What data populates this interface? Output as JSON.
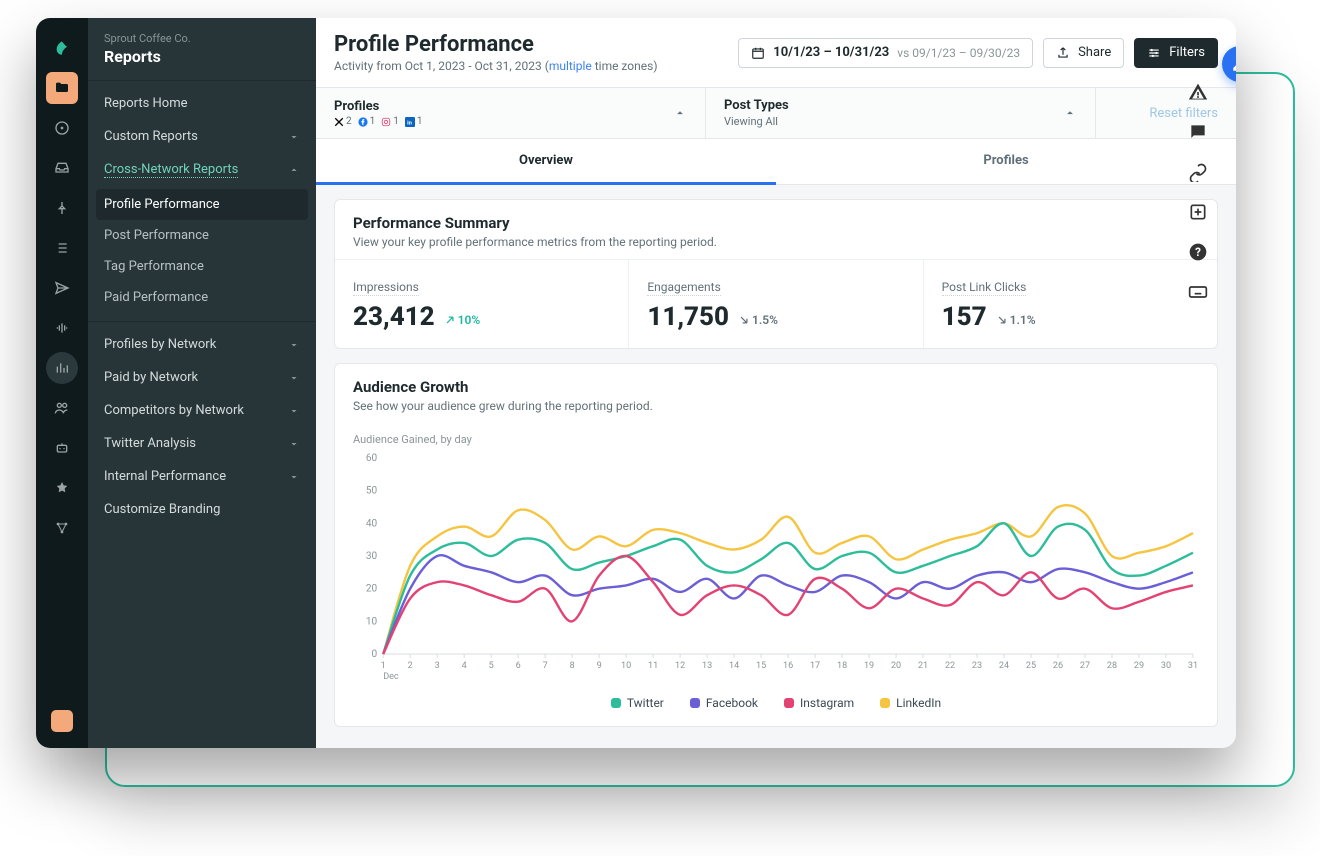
{
  "org": "Sprout Coffee Co.",
  "section": "Reports",
  "sidebar": {
    "home": "Reports Home",
    "custom": "Custom Reports",
    "cross": "Cross-Network Reports",
    "subs": [
      "Profile Performance",
      "Post Performance",
      "Tag Performance",
      "Paid Performance"
    ],
    "groups": [
      "Profiles by Network",
      "Paid by Network",
      "Competitors by Network",
      "Twitter Analysis",
      "Internal Performance"
    ],
    "custom_branding": "Customize Branding"
  },
  "header": {
    "title": "Profile Performance",
    "activity_prefix": "Activity from Oct 1, 2023 - Oct 31, 2023 (",
    "activity_multi": "multiple",
    "activity_suffix": " time zones)",
    "date_main": "10/1/23 – 10/31/23",
    "date_vs": "vs 09/1/23 – 09/30/23",
    "share": "Share",
    "filters": "Filters"
  },
  "strip": {
    "profiles_t": "Profiles",
    "profiles_counts": {
      "x": "2",
      "fb": "1",
      "ig": "1",
      "li": "1"
    },
    "post_types_t": "Post Types",
    "post_types_s": "Viewing All",
    "reset": "Reset filters"
  },
  "tabs": {
    "overview": "Overview",
    "profiles": "Profiles"
  },
  "summary": {
    "title": "Performance Summary",
    "sub": "View your key profile performance metrics from the reporting period.",
    "metrics": [
      {
        "label": "Impressions",
        "value": "23,412",
        "dir": "up",
        "delta": "10%"
      },
      {
        "label": "Engagements",
        "value": "11,750",
        "dir": "down",
        "delta": "1.5%"
      },
      {
        "label": "Post Link Clicks",
        "value": "157",
        "dir": "down",
        "delta": "1.1%"
      }
    ]
  },
  "growth": {
    "title": "Audience Growth",
    "sub": "See how your audience grew during the reporting period.",
    "chart_label": "Audience Gained, by day",
    "month": "Dec",
    "y_ticks": [
      0,
      10,
      20,
      30,
      40,
      50,
      60
    ],
    "x_ticks": [
      1,
      2,
      3,
      4,
      5,
      6,
      7,
      8,
      9,
      10,
      11,
      12,
      13,
      14,
      15,
      16,
      17,
      18,
      19,
      20,
      21,
      22,
      23,
      24,
      25,
      26,
      27,
      28,
      29,
      30,
      31
    ],
    "colors": {
      "twitter": "#2dbd9b",
      "facebook": "#6b5fd6",
      "instagram": "#e24373",
      "linkedin": "#f5c542",
      "grid": "#d8dee1",
      "axis_text": "#8a9598"
    },
    "legend": {
      "twitter": "Twitter",
      "facebook": "Facebook",
      "instagram": "Instagram",
      "linkedin": "LinkedIn"
    },
    "series": {
      "linkedin": [
        0,
        27,
        36,
        39,
        36,
        44,
        41,
        32,
        36,
        33,
        38,
        37,
        34,
        32,
        35,
        42,
        31,
        34,
        36,
        29,
        32,
        35,
        37,
        40,
        36,
        45,
        43,
        30,
        31,
        33,
        37
      ],
      "twitter": [
        0,
        24,
        32,
        34,
        30,
        35,
        34,
        26,
        28,
        30,
        33,
        35,
        27,
        25,
        29,
        34,
        26,
        30,
        31,
        25,
        27,
        30,
        33,
        40,
        30,
        39,
        38,
        26,
        24,
        27,
        31
      ],
      "facebook": [
        0,
        20,
        30,
        27,
        25,
        22,
        24,
        18,
        20,
        21,
        23,
        19,
        23,
        17,
        24,
        21,
        19,
        24,
        22,
        17,
        22,
        20,
        24,
        25,
        22,
        26,
        25,
        22,
        20,
        22,
        25
      ],
      "instagram": [
        0,
        17,
        22,
        21,
        18,
        16,
        20,
        10,
        24,
        30,
        22,
        12,
        18,
        21,
        18,
        12,
        23,
        20,
        14,
        20,
        17,
        15,
        22,
        18,
        25,
        17,
        20,
        14,
        16,
        19,
        21
      ]
    }
  }
}
